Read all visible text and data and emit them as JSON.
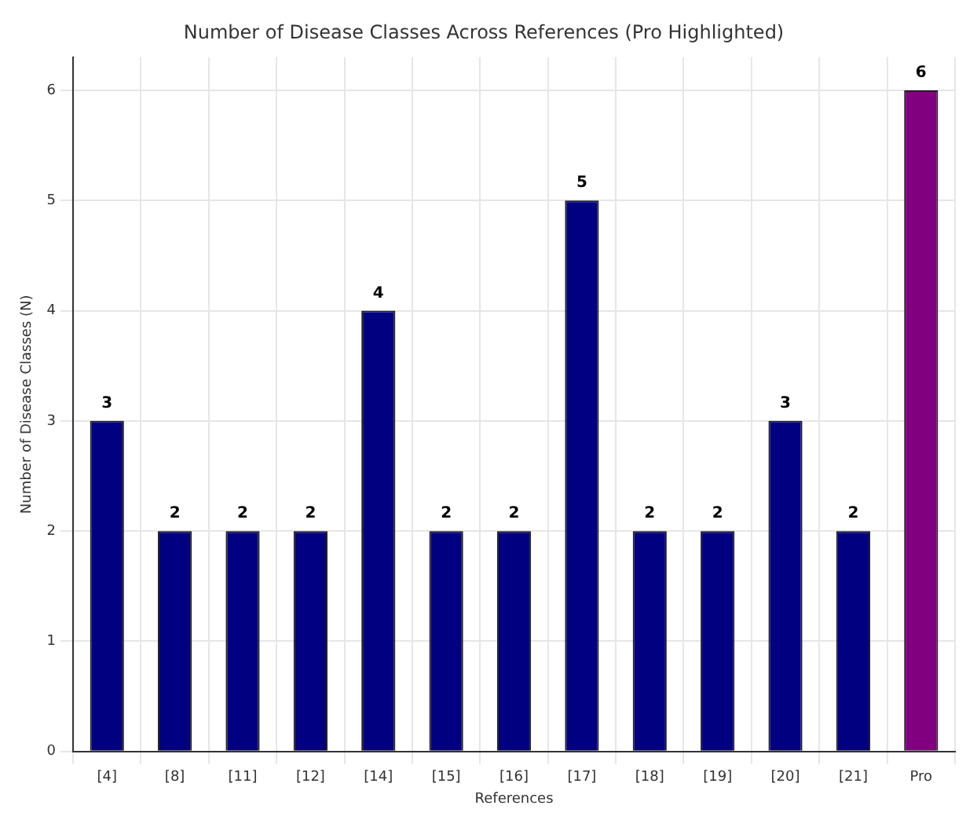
{
  "chart_data": {
    "type": "bar",
    "title": "Number of Disease Classes Across References (Pro Highlighted)",
    "xlabel": "References",
    "ylabel": "Number of Disease Classes (N)",
    "categories": [
      "[4]",
      "[8]",
      "[11]",
      "[12]",
      "[14]",
      "[15]",
      "[16]",
      "[17]",
      "[18]",
      "[19]",
      "[20]",
      "[21]",
      "Pro"
    ],
    "values": [
      3,
      2,
      2,
      2,
      4,
      2,
      2,
      5,
      2,
      2,
      3,
      2,
      6
    ],
    "colors": [
      "#000080",
      "#000080",
      "#000080",
      "#000080",
      "#000080",
      "#000080",
      "#000080",
      "#000080",
      "#000080",
      "#000080",
      "#000080",
      "#000080",
      "#800080"
    ],
    "ylim": [
      0,
      6.3
    ],
    "yticks": [
      0,
      1,
      2,
      3,
      4,
      5,
      6
    ],
    "grid": true,
    "data_labels": true,
    "legend": false
  }
}
